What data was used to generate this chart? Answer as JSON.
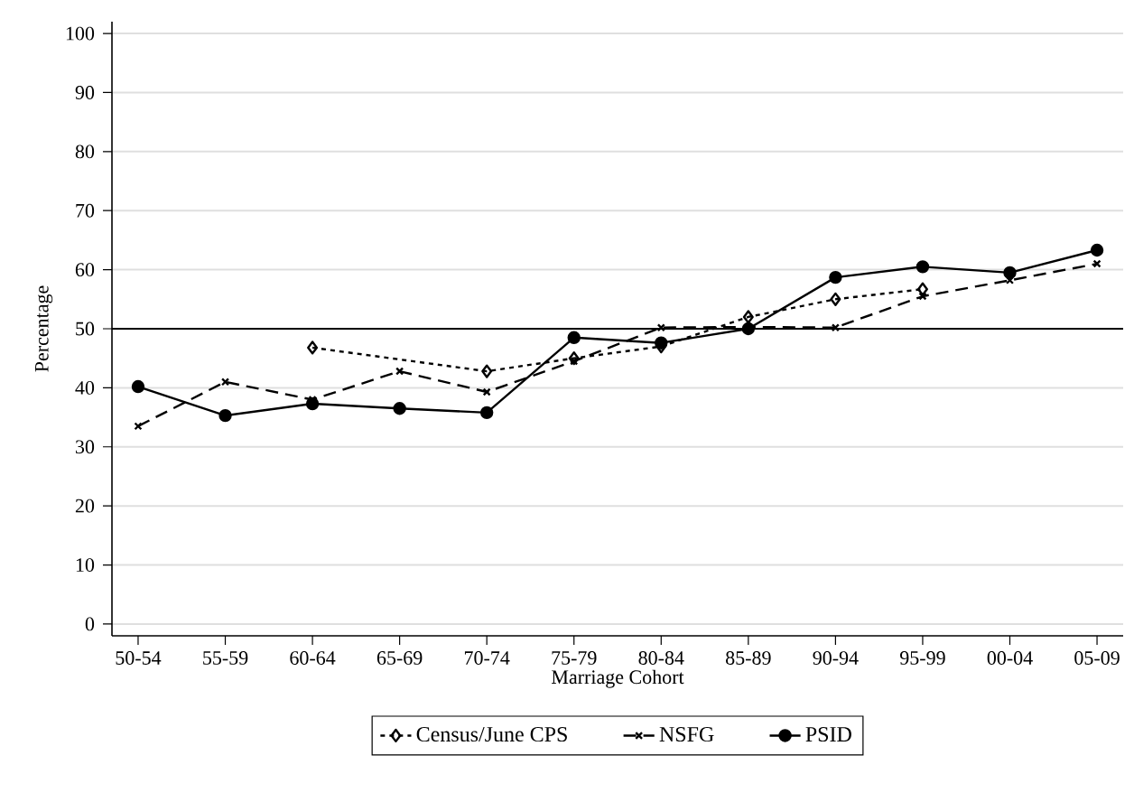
{
  "chart_data": {
    "type": "line",
    "xlabel": "Marriage Cohort",
    "ylabel": "Percentage",
    "categories": [
      "50-54",
      "55-59",
      "60-64",
      "65-69",
      "70-74",
      "75-79",
      "80-84",
      "85-89",
      "90-94",
      "95-99",
      "00-04",
      "05-09"
    ],
    "series": [
      {
        "name": "Census/June CPS",
        "color": "#000000",
        "marker": "diamond",
        "line_style": "dotted",
        "values": [
          null,
          null,
          46.8,
          null,
          42.8,
          45,
          47,
          52,
          55,
          56.7,
          null,
          null
        ]
      },
      {
        "name": "NSFG",
        "color": "#000000",
        "marker": "cross",
        "line_style": "dashed",
        "values": [
          33.5,
          41,
          38,
          42.8,
          39.3,
          44.5,
          50.2,
          50.3,
          50.2,
          55.5,
          58.2,
          61
        ]
      },
      {
        "name": "PSID",
        "color": "#000000",
        "marker": "circle",
        "line_style": "solid",
        "values": [
          40.2,
          35.3,
          37.3,
          36.5,
          35.8,
          48.5,
          47.6,
          50,
          58.7,
          60.5,
          59.5,
          63.3
        ]
      }
    ],
    "ylim": [
      -2,
      102
    ],
    "yticks": [
      0,
      10,
      20,
      30,
      40,
      50,
      60,
      70,
      80,
      90,
      100
    ],
    "grid": "y",
    "legend": "bottom",
    "ref_lines": [
      {
        "axis": "y",
        "value": 50,
        "color": "#000000",
        "line_style": "solid"
      }
    ]
  }
}
